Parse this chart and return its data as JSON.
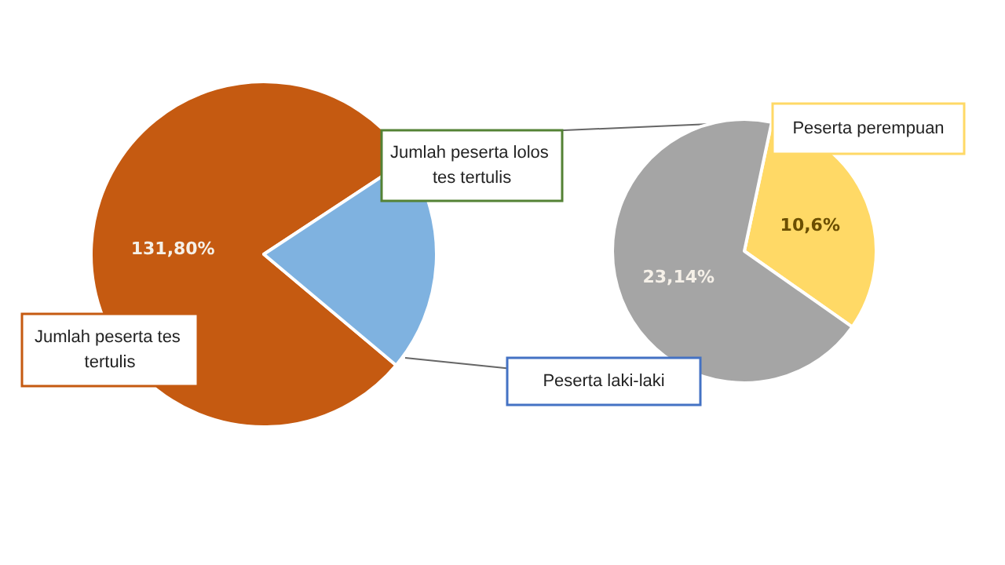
{
  "chart_data": [
    {
      "type": "pie",
      "categories": [
        "Jumlah peserta tes tertulis",
        "Jumlah peserta lolos tes tertulis"
      ],
      "values": [
        131.8,
        33.74
      ],
      "colors": [
        "#c55a11",
        "#7fb2e0"
      ],
      "value_labels": [
        "131,80%",
        null
      ]
    },
    {
      "type": "pie",
      "categories": [
        "Peserta perempuan",
        "Peserta laki-laki"
      ],
      "values": [
        10.6,
        23.14
      ],
      "colors": [
        "#ffd966",
        "#a5a5a5"
      ],
      "value_labels": [
        "10,6%",
        "23,14%"
      ]
    }
  ]
}
